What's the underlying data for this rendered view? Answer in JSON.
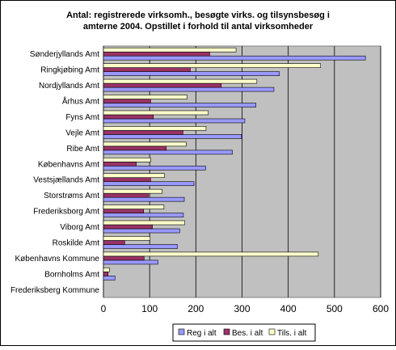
{
  "chart_data": {
    "type": "bar",
    "orientation": "horizontal",
    "title_lines": [
      "Antal: registrerede virksomh., besøgte virks. og tilsynsbesøg i",
      "amterne 2004. Opstillet i forhold til antal virksomheder"
    ],
    "categories": [
      "Sønderjyllands Amt",
      "Ringkjøbing Amt",
      "Nordjyllands Amt",
      "Århus Amt",
      "Fyns Amt",
      "Vejle Amt",
      "Ribe Amt",
      "Københavns Amt",
      "Vestsjællands Amt",
      "Storstrøms Amt",
      "Frederiksborg Amt",
      "Viborg Amt",
      "Roskilde Amt",
      "Københavns Kommune",
      "Bornholms Amt",
      "Frederiksberg Kommune"
    ],
    "series": [
      {
        "name": "Reg i alt",
        "color": "#9999ff",
        "values": [
          567,
          381,
          369,
          330,
          306,
          299,
          279,
          221,
          196,
          175,
          173,
          165,
          160,
          118,
          25,
          0
        ]
      },
      {
        "name": "Bes. i alt",
        "color": "#993366",
        "values": [
          230,
          188,
          255,
          102,
          108,
          172,
          136,
          71,
          102,
          97,
          87,
          106,
          46,
          88,
          10,
          0
        ]
      },
      {
        "name": "Tils. i alt",
        "color": "#ffffcc",
        "values": [
          287,
          470,
          332,
          181,
          227,
          222,
          179,
          102,
          132,
          127,
          131,
          176,
          101,
          465,
          13,
          0
        ]
      }
    ],
    "xlim": [
      0,
      600
    ],
    "x_ticks": [
      "0",
      "100",
      "200",
      "300",
      "400",
      "500",
      "600"
    ],
    "grid": true,
    "plot_background": "#c0c0c0",
    "legend_position": "bottom"
  }
}
